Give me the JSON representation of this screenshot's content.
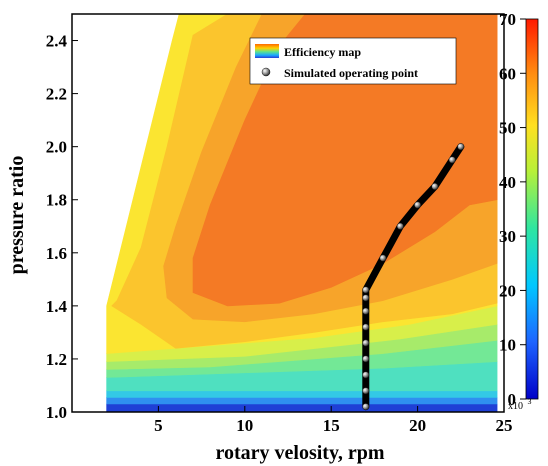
{
  "chart_data": {
    "type": "heatmap",
    "xlabel": "rotary velosity, rpm",
    "ylabel": "pressure ratio",
    "xlim": [
      0,
      25
    ],
    "ylim": [
      1.0,
      2.5
    ],
    "x_ticks": [
      "5",
      "10",
      "15",
      "20",
      "25"
    ],
    "y_ticks": [
      "1.0",
      "1.2",
      "1.4",
      "1.6",
      "1.8",
      "2.0",
      "2.2",
      "2.4"
    ],
    "colorbar": {
      "range": [
        0,
        70
      ],
      "ticks": [
        "0",
        "10",
        "20",
        "30",
        "40",
        "50",
        "60",
        "70"
      ],
      "multiplier": "x10",
      "multiplier_exp": "3"
    },
    "legend": {
      "position": "top-center",
      "entries": [
        "Efficiency map",
        "Simulated operating point"
      ]
    },
    "efficiency_map_levels": [
      {
        "value": 2,
        "color": "#1f3fd6"
      },
      {
        "value": 8,
        "color": "#2f8ff0"
      },
      {
        "value": 15,
        "color": "#33c9e6"
      },
      {
        "value": 22,
        "color": "#4fe0c0"
      },
      {
        "value": 30,
        "color": "#73e896"
      },
      {
        "value": 37,
        "color": "#a7eb6a"
      },
      {
        "value": 44,
        "color": "#d8ef4a"
      },
      {
        "value": 50,
        "color": "#fbe531"
      },
      {
        "value": 56,
        "color": "#fbc52d"
      },
      {
        "value": 62,
        "color": "#f7a42a"
      },
      {
        "value": 67,
        "color": "#f47a25"
      }
    ],
    "operating_points": [
      {
        "x": 17.0,
        "y": 1.02
      },
      {
        "x": 17.0,
        "y": 1.08
      },
      {
        "x": 17.0,
        "y": 1.14
      },
      {
        "x": 17.0,
        "y": 1.2
      },
      {
        "x": 17.0,
        "y": 1.26
      },
      {
        "x": 17.0,
        "y": 1.32
      },
      {
        "x": 17.0,
        "y": 1.38
      },
      {
        "x": 17.0,
        "y": 1.43
      },
      {
        "x": 17.0,
        "y": 1.46
      },
      {
        "x": 18.0,
        "y": 1.58
      },
      {
        "x": 19.0,
        "y": 1.7
      },
      {
        "x": 20.0,
        "y": 1.78
      },
      {
        "x": 21.0,
        "y": 1.85
      },
      {
        "x": 22.0,
        "y": 1.95
      },
      {
        "x": 22.5,
        "y": 2.0
      }
    ]
  }
}
